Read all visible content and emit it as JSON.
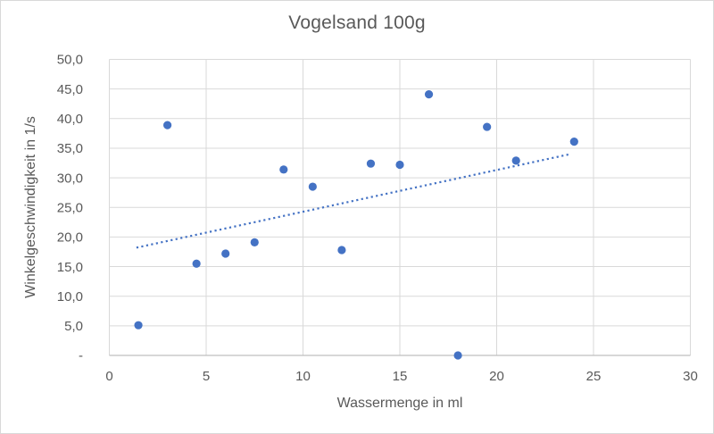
{
  "chart": {
    "title": "Vogelsand 100g"
  },
  "chart_data": {
    "type": "scatter",
    "title": "Vogelsand 100g",
    "xlabel": "Wassermenge in ml",
    "ylabel": "Winkelgeschwindigkeit in 1/s",
    "xlim": [
      0,
      30
    ],
    "ylim": [
      0,
      50
    ],
    "grid": true,
    "legend": false,
    "x_ticks": [
      0,
      5,
      10,
      15,
      20,
      25,
      30
    ],
    "x_tick_labels": [
      "0",
      "5",
      "10",
      "15",
      "20",
      "25",
      "30"
    ],
    "y_ticks": [
      0,
      5,
      10,
      15,
      20,
      25,
      30,
      35,
      40,
      45,
      50
    ],
    "y_tick_labels": [
      "-",
      "5,0",
      "10,0",
      "15,0",
      "20,0",
      "25,0",
      "30,0",
      "35,0",
      "40,0",
      "45,0",
      "50,0"
    ],
    "series": [
      {
        "name": "Vogelsand 100g",
        "marker": "circle",
        "points": [
          [
            1.5,
            5.1
          ],
          [
            3,
            38.9
          ],
          [
            4.5,
            15.5
          ],
          [
            6,
            17.2
          ],
          [
            7.5,
            19.1
          ],
          [
            9,
            31.4
          ],
          [
            10.5,
            28.5
          ],
          [
            12,
            17.8
          ],
          [
            13.5,
            32.4
          ],
          [
            15,
            32.2
          ],
          [
            16.5,
            44.1
          ],
          [
            18,
            0
          ],
          [
            19.5,
            38.6
          ],
          [
            21,
            32.9
          ],
          [
            24,
            36.1
          ]
        ]
      }
    ],
    "trendline": {
      "type": "linear",
      "style": "dotted",
      "x1": 1.4,
      "y1": 18.2,
      "x2": 23.8,
      "y2": 34.0
    },
    "colors": {
      "marker": "#4472C4",
      "trendline": "#4472C4",
      "gridline": "#D9D9D9",
      "axis_line": "#BFBFBF",
      "text": "#595959",
      "background": "#FFFFFF"
    }
  }
}
